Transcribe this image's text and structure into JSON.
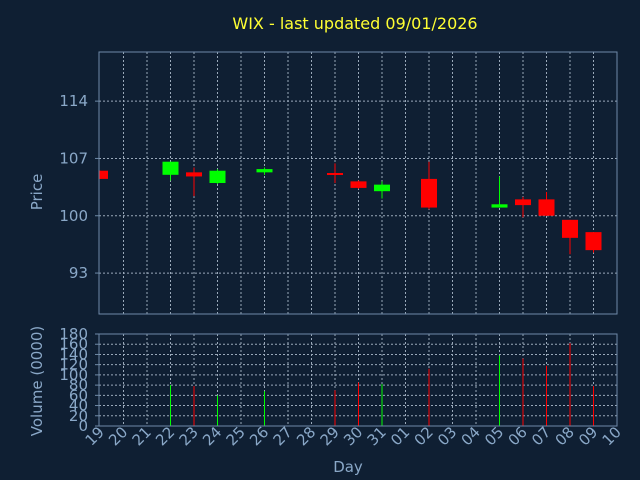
{
  "chart_data": [
    {
      "type": "candlestick",
      "title": "WIX - last updated 09/01/2026",
      "ylabel": "Price",
      "xlabel": "Day",
      "ylim": [
        88,
        120
      ],
      "y_ticks": [
        93,
        100,
        107,
        114
      ],
      "x_ticks": [
        "19",
        "20",
        "21",
        "22",
        "23",
        "24",
        "25",
        "26",
        "27",
        "28",
        "29",
        "30",
        "31",
        "01",
        "02",
        "03",
        "04",
        "05",
        "06",
        "07",
        "08",
        "09",
        "10"
      ],
      "grid": true,
      "colors": {
        "up": "#00ff00",
        "down": "#ff0000"
      },
      "candles": [
        {
          "day": "19",
          "open": 105.5,
          "high": 105.5,
          "low": 104.5,
          "close": 104.5
        },
        {
          "day": "22",
          "open": 105.0,
          "high": 106.6,
          "low": 104.3,
          "close": 106.6
        },
        {
          "day": "23",
          "open": 105.3,
          "high": 105.9,
          "low": 102.4,
          "close": 104.8
        },
        {
          "day": "24",
          "open": 104.0,
          "high": 105.7,
          "low": 103.9,
          "close": 105.5
        },
        {
          "day": "26",
          "open": 105.3,
          "high": 105.9,
          "low": 105.0,
          "close": 105.7
        },
        {
          "day": "29",
          "open": 105.1,
          "high": 106.4,
          "low": 104.0,
          "close": 104.9
        },
        {
          "day": "30",
          "open": 104.2,
          "high": 104.3,
          "low": 103.3,
          "close": 103.4
        },
        {
          "day": "31",
          "open": 103.0,
          "high": 104.2,
          "low": 102.1,
          "close": 103.8
        },
        {
          "day": "02",
          "open": 104.5,
          "high": 106.6,
          "low": 100.8,
          "close": 101.0
        },
        {
          "day": "05",
          "open": 101.0,
          "high": 104.8,
          "low": 101.0,
          "close": 101.4
        },
        {
          "day": "06",
          "open": 102.0,
          "high": 102.3,
          "low": 99.8,
          "close": 101.3
        },
        {
          "day": "07",
          "open": 102.0,
          "high": 102.9,
          "low": 100.0,
          "close": 100.0
        },
        {
          "day": "08",
          "open": 99.5,
          "high": 99.5,
          "low": 95.3,
          "close": 97.3
        },
        {
          "day": "09",
          "open": 98.0,
          "high": 98.0,
          "low": 95.5,
          "close": 95.8
        }
      ]
    },
    {
      "type": "bar",
      "ylabel": "Volume (0000)",
      "xlabel": "Day",
      "ylim": [
        0,
        180
      ],
      "y_ticks": [
        0,
        20,
        40,
        60,
        80,
        100,
        120,
        140,
        160,
        180
      ],
      "grid": true,
      "bars": [
        {
          "day": "22",
          "value": 80,
          "direction": "up"
        },
        {
          "day": "23",
          "value": 78,
          "direction": "down"
        },
        {
          "day": "24",
          "value": 60,
          "direction": "up"
        },
        {
          "day": "26",
          "value": 68,
          "direction": "up"
        },
        {
          "day": "29",
          "value": 70,
          "direction": "down"
        },
        {
          "day": "30",
          "value": 85,
          "direction": "down"
        },
        {
          "day": "31",
          "value": 82,
          "direction": "up"
        },
        {
          "day": "02",
          "value": 112,
          "direction": "down"
        },
        {
          "day": "05",
          "value": 138,
          "direction": "up"
        },
        {
          "day": "06",
          "value": 132,
          "direction": "down"
        },
        {
          "day": "07",
          "value": 118,
          "direction": "down"
        },
        {
          "day": "08",
          "value": 162,
          "direction": "down"
        },
        {
          "day": "09",
          "value": 78,
          "direction": "down"
        }
      ]
    }
  ]
}
